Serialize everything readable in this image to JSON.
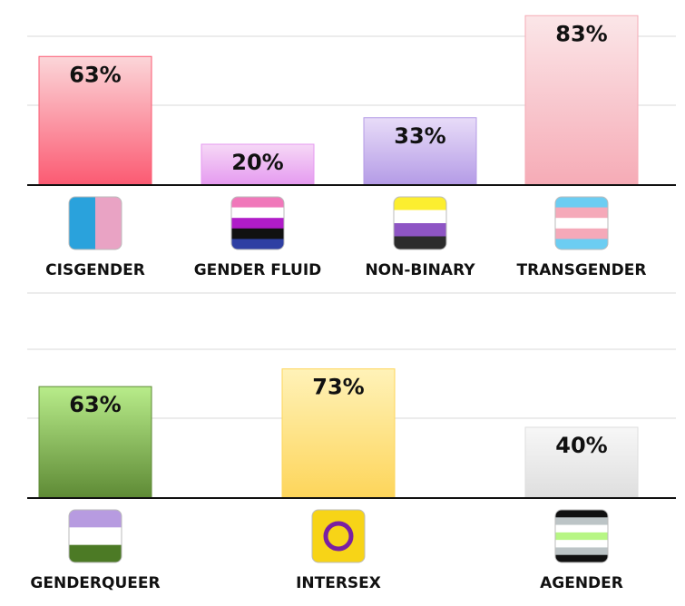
{
  "chart_data": [
    {
      "type": "bar",
      "categories": [
        "CISGENDER",
        "GENDER FLUID",
        "NON-BINARY",
        "TRANSGENDER"
      ],
      "values": [
        63,
        20,
        33,
        83
      ],
      "data_labels": [
        "63%",
        "20%",
        "33%",
        "83%"
      ],
      "icons": [
        "cisgender-flag-icon",
        "genderfluid-flag-icon",
        "nonbinary-flag-icon",
        "transgender-flag-icon"
      ],
      "colors": [
        [
          "#fbd6d9",
          "#fb5a72"
        ],
        [
          "#f6d8f6",
          "#e59af0"
        ],
        [
          "#e8dcf8",
          "#b49be6"
        ],
        [
          "#fbe6e8",
          "#f6abb6"
        ]
      ],
      "grid": true
    },
    {
      "type": "bar",
      "categories": [
        "GENDERQUEER",
        "INTERSEX",
        "AGENDER"
      ],
      "values": [
        63,
        73,
        40
      ],
      "data_labels": [
        "63%",
        "73%",
        "40%"
      ],
      "icons": [
        "genderqueer-flag-icon",
        "intersex-flag-icon",
        "agender-flag-icon"
      ],
      "colors": [
        [
          "#b8ec8a",
          "#5e8a35"
        ],
        [
          "#fff2b8",
          "#fdd55a"
        ],
        [
          "#f7f7f7",
          "#dedede"
        ]
      ],
      "grid": true
    }
  ]
}
